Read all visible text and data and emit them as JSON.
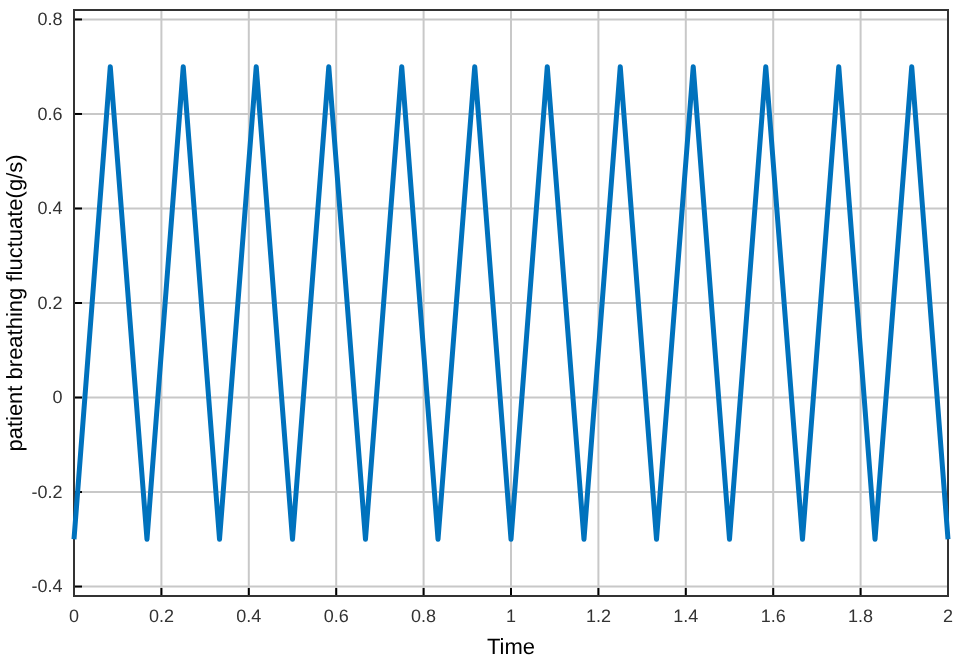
{
  "chart_data": {
    "type": "line",
    "xlabel": "Time",
    "ylabel": "patient breathing fluctuate(g/s)",
    "x": [
      0,
      0.083,
      0.167,
      0.25,
      0.333,
      0.417,
      0.5,
      0.583,
      0.667,
      0.75,
      0.833,
      0.917,
      1,
      1.083,
      1.167,
      1.25,
      1.333,
      1.417,
      1.5,
      1.583,
      1.667,
      1.75,
      1.833,
      1.917,
      2
    ],
    "series": [
      {
        "color": "#0072bd",
        "values": [
          -0.3,
          0.7,
          -0.3,
          0.7,
          -0.3,
          0.7,
          -0.3,
          0.7,
          -0.3,
          0.7,
          -0.3,
          0.7,
          -0.3,
          0.7,
          -0.3,
          0.7,
          -0.3,
          0.7,
          -0.3,
          0.7,
          -0.3,
          0.7,
          -0.3,
          0.7,
          -0.3
        ]
      }
    ],
    "xlim": [
      0,
      2
    ],
    "xticks": [
      0,
      0.2,
      0.4,
      0.6,
      0.8,
      1,
      1.2,
      1.4,
      1.6,
      1.8,
      2
    ],
    "ylim": [
      -0.42,
      0.82
    ],
    "yticks": [
      -0.4,
      -0.2,
      0,
      0.2,
      0.4,
      0.6,
      0.8
    ],
    "grid": true,
    "marker": "none",
    "line_style": "solid"
  }
}
